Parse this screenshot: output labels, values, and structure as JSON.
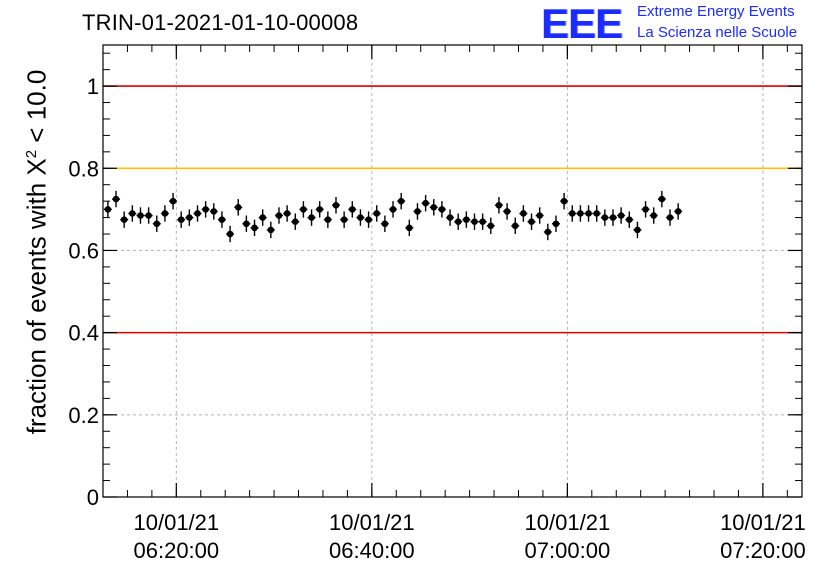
{
  "title": "TRIN-01-2021-01-10-00008",
  "logo": {
    "mark": "EEE",
    "line1": "Extreme Energy Events",
    "line2": "La Scienza nelle Scuole"
  },
  "colors": {
    "logo": "#1a2cff",
    "upper_limit": "#e00000",
    "warning_limit": "#ffc000",
    "lower_limit": "#e00000",
    "points": "#000000",
    "grid": "#b4b4b4"
  },
  "chart_data": {
    "type": "scatter",
    "ylabel_prefix": "fraction of events with X",
    "ylabel_sup": "2",
    "ylabel_suffix": " < 10.0",
    "ylim": [
      0,
      1.1
    ],
    "yticks": [
      {
        "value": 0,
        "label": "0"
      },
      {
        "value": 0.2,
        "label": "0.2"
      },
      {
        "value": 0.4,
        "label": "0.4"
      },
      {
        "value": 0.6,
        "label": "0.6"
      },
      {
        "value": 0.8,
        "label": "0.8"
      },
      {
        "value": 1,
        "label": "1"
      }
    ],
    "xlim": [
      "2021-01-10 06:12:30",
      "2021-01-10 07:24:00"
    ],
    "xticks": [
      {
        "time": "2021-01-10 06:20:00",
        "date": "10/01/21",
        "clock": "06:20:00"
      },
      {
        "time": "2021-01-10 06:40:00",
        "date": "10/01/21",
        "clock": "06:40:00"
      },
      {
        "time": "2021-01-10 07:00:00",
        "date": "10/01/21",
        "clock": "07:00:00"
      },
      {
        "time": "2021-01-10 07:20:00",
        "date": "10/01/21",
        "clock": "07:20:00"
      }
    ],
    "grid": true,
    "reference_lines": [
      {
        "y": 1.0,
        "color": "#e00000"
      },
      {
        "y": 0.8,
        "color": "#ffc000"
      },
      {
        "y": 0.4,
        "color": "#e00000"
      }
    ],
    "series": [
      {
        "start": "2021-01-10 06:13:00",
        "step_seconds": 50,
        "values": [
          0.7,
          0.725,
          0.675,
          0.69,
          0.685,
          0.685,
          0.665,
          0.69,
          0.72,
          0.675,
          0.68,
          0.69,
          0.7,
          0.695,
          0.675,
          0.64,
          0.705,
          0.665,
          0.655,
          0.68,
          0.65,
          0.685,
          0.69,
          0.67,
          0.7,
          0.68,
          0.7,
          0.675,
          0.71,
          0.675,
          0.7,
          0.68,
          0.675,
          0.69,
          0.665,
          0.7,
          0.72,
          0.655,
          0.695,
          0.715,
          0.705,
          0.7,
          0.68,
          0.67,
          0.675,
          0.67,
          0.67,
          0.66,
          0.71,
          0.695,
          0.66,
          0.69,
          0.67,
          0.685,
          0.645,
          0.665,
          0.72,
          0.69,
          0.69,
          0.69,
          0.69,
          0.68,
          0.68,
          0.685,
          0.675,
          0.65,
          0.7,
          0.685,
          0.725,
          0.68,
          0.695
        ],
        "error": 0.02
      }
    ]
  }
}
